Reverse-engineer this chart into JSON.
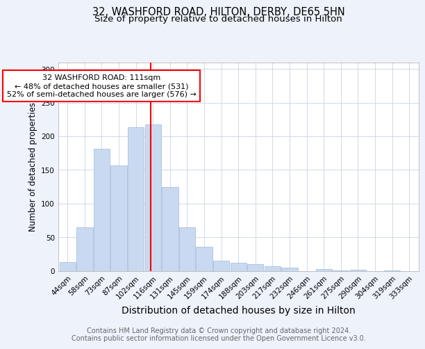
{
  "title1": "32, WASHFORD ROAD, HILTON, DERBY, DE65 5HN",
  "title2": "Size of property relative to detached houses in Hilton",
  "xlabel": "Distribution of detached houses by size in Hilton",
  "ylabel": "Number of detached properties",
  "categories": [
    "44sqm",
    "58sqm",
    "73sqm",
    "87sqm",
    "102sqm",
    "116sqm",
    "131sqm",
    "145sqm",
    "159sqm",
    "174sqm",
    "188sqm",
    "203sqm",
    "217sqm",
    "232sqm",
    "246sqm",
    "261sqm",
    "275sqm",
    "290sqm",
    "304sqm",
    "319sqm",
    "333sqm"
  ],
  "values": [
    13,
    65,
    181,
    157,
    213,
    218,
    125,
    65,
    36,
    15,
    12,
    10,
    7,
    5,
    0,
    3,
    1,
    2,
    0,
    1,
    0
  ],
  "bar_color": "#c9daf0",
  "bar_edge_color": "#a8c0de",
  "vline_x_index": 4.85,
  "annotation_text": "32 WASHFORD ROAD: 111sqm\n← 48% of detached houses are smaller (531)\n52% of semi-detached houses are larger (576) →",
  "annotation_box_color": "white",
  "annotation_box_edge_color": "red",
  "vline_color": "red",
  "ylim": [
    0,
    310
  ],
  "yticks": [
    0,
    50,
    100,
    150,
    200,
    250,
    300
  ],
  "footer_text": "Contains HM Land Registry data © Crown copyright and database right 2024.\nContains public sector information licensed under the Open Government Licence v3.0.",
  "background_color": "#eef2fb",
  "plot_background_color": "#ffffff",
  "grid_color": "#d0d8e8",
  "title1_fontsize": 10.5,
  "title2_fontsize": 9.5,
  "xlabel_fontsize": 10,
  "ylabel_fontsize": 8.5,
  "tick_fontsize": 7.5,
  "annotation_fontsize": 8,
  "footer_fontsize": 7
}
